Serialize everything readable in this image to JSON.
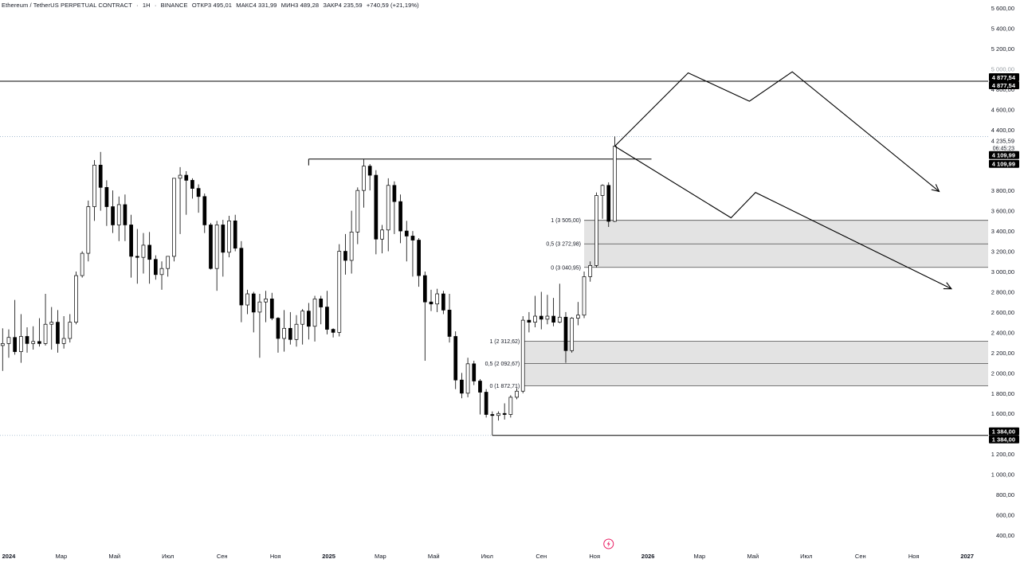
{
  "header": {
    "symbol": "Ethereum / TetherUS PERPETUAL CONTRACT",
    "timeframe": "1Н",
    "exchange": "BINANCE",
    "open": "ОТКР3 495,01",
    "high": "МАКС4 331,99",
    "low": "МИН3 489,28",
    "close": "ЗАКР4 235,59",
    "change": "+740,59 (+21,19%)"
  },
  "chart_data": {
    "type": "candlestick",
    "price_axis_ticks": [
      "5 600,00",
      "5 400,00",
      "5 200,00",
      "5 000,00",
      "4 800,00",
      "4 600,00",
      "4 400,00",
      "4 200,00",
      "4 000,00",
      "3 800,00",
      "3 600,00",
      "3 400,00",
      "3 200,00",
      "3 000,00",
      "2 800,00",
      "2 600,00",
      "2 400,00",
      "2 200,00",
      "2 000,00",
      "1 800,00",
      "1 600,00",
      "1 400,00",
      "1 200,00",
      "1 000,00",
      "800,00",
      "600,00",
      "400,00"
    ],
    "tick_values": [
      5600,
      5400,
      5200,
      5000,
      4800,
      4600,
      4400,
      4200,
      4000,
      3800,
      3600,
      3400,
      3200,
      3000,
      2800,
      2600,
      2400,
      2200,
      2000,
      1800,
      1600,
      1400,
      1200,
      1000,
      800,
      600,
      400
    ],
    "time_axis_ticks": [
      {
        "label": "2024",
        "bold": true,
        "date": "2024-01-01"
      },
      {
        "label": "Мар",
        "bold": false,
        "date": "2024-03-01"
      },
      {
        "label": "Май",
        "bold": false,
        "date": "2024-05-01"
      },
      {
        "label": "Июл",
        "bold": false,
        "date": "2024-07-01"
      },
      {
        "label": "Сен",
        "bold": false,
        "date": "2024-09-01"
      },
      {
        "label": "Ноя",
        "bold": false,
        "date": "2024-11-01"
      },
      {
        "label": "2025",
        "bold": true,
        "date": "2025-01-01"
      },
      {
        "label": "Мар",
        "bold": false,
        "date": "2025-03-01"
      },
      {
        "label": "Май",
        "bold": false,
        "date": "2025-05-01"
      },
      {
        "label": "Июл",
        "bold": false,
        "date": "2025-07-01"
      },
      {
        "label": "Сен",
        "bold": false,
        "date": "2025-09-01"
      },
      {
        "label": "Ноя",
        "bold": false,
        "date": "2025-11-01"
      },
      {
        "label": "2026",
        "bold": true,
        "date": "2026-01-01"
      },
      {
        "label": "Мар",
        "bold": false,
        "date": "2026-03-01"
      },
      {
        "label": "Май",
        "bold": false,
        "date": "2026-05-01"
      },
      {
        "label": "Июл",
        "bold": false,
        "date": "2026-07-01"
      },
      {
        "label": "Сен",
        "bold": false,
        "date": "2026-09-01"
      },
      {
        "label": "Ноя",
        "bold": false,
        "date": "2026-11-01"
      },
      {
        "label": "2027",
        "bold": true,
        "date": "2027-01-01"
      }
    ],
    "candles": [
      {
        "date": "2023-12-25",
        "o": 2270,
        "h": 2440,
        "l": 2020,
        "c": 2290
      },
      {
        "date": "2024-01-01",
        "o": 2290,
        "h": 2430,
        "l": 2150,
        "c": 2350
      },
      {
        "date": "2024-01-08",
        "o": 2350,
        "h": 2720,
        "l": 2180,
        "c": 2210
      },
      {
        "date": "2024-01-15",
        "o": 2210,
        "h": 2580,
        "l": 2100,
        "c": 2360
      },
      {
        "date": "2024-01-22",
        "o": 2360,
        "h": 2450,
        "l": 2200,
        "c": 2290
      },
      {
        "date": "2024-01-29",
        "o": 2290,
        "h": 2460,
        "l": 2230,
        "c": 2310
      },
      {
        "date": "2024-02-05",
        "o": 2310,
        "h": 2540,
        "l": 2260,
        "c": 2290
      },
      {
        "date": "2024-02-12",
        "o": 2290,
        "h": 2780,
        "l": 2270,
        "c": 2480
      },
      {
        "date": "2024-02-19",
        "o": 2480,
        "h": 2650,
        "l": 2230,
        "c": 2500
      },
      {
        "date": "2024-02-26",
        "o": 2500,
        "h": 2620,
        "l": 2200,
        "c": 2290
      },
      {
        "date": "2024-03-04",
        "o": 2290,
        "h": 2560,
        "l": 2240,
        "c": 2340
      },
      {
        "date": "2024-03-11",
        "o": 2340,
        "h": 2580,
        "l": 2300,
        "c": 2500
      },
      {
        "date": "2024-03-18",
        "o": 2500,
        "h": 3000,
        "l": 2480,
        "c": 2960
      },
      {
        "date": "2024-03-25",
        "o": 2960,
        "h": 3200,
        "l": 2940,
        "c": 3180
      },
      {
        "date": "2024-04-01",
        "o": 3180,
        "h": 3700,
        "l": 3100,
        "c": 3640
      },
      {
        "date": "2024-04-08",
        "o": 3640,
        "h": 4100,
        "l": 3500,
        "c": 4050
      },
      {
        "date": "2024-04-15",
        "o": 4050,
        "h": 4180,
        "l": 3600,
        "c": 3830
      },
      {
        "date": "2024-04-22",
        "o": 3830,
        "h": 3900,
        "l": 3450,
        "c": 3640
      },
      {
        "date": "2024-04-29",
        "o": 3640,
        "h": 3800,
        "l": 3380,
        "c": 3460
      },
      {
        "date": "2024-05-06",
        "o": 3460,
        "h": 3740,
        "l": 3300,
        "c": 3660
      },
      {
        "date": "2024-05-13",
        "o": 3660,
        "h": 3760,
        "l": 3300,
        "c": 3460
      },
      {
        "date": "2024-05-20",
        "o": 3460,
        "h": 3560,
        "l": 2940,
        "c": 3150
      },
      {
        "date": "2024-05-27",
        "o": 3150,
        "h": 3420,
        "l": 2880,
        "c": 3140
      },
      {
        "date": "2024-06-03",
        "o": 3140,
        "h": 3380,
        "l": 2980,
        "c": 3260
      },
      {
        "date": "2024-06-10",
        "o": 3260,
        "h": 3390,
        "l": 2880,
        "c": 3120
      },
      {
        "date": "2024-06-17",
        "o": 3120,
        "h": 3160,
        "l": 2920,
        "c": 2970
      },
      {
        "date": "2024-06-24",
        "o": 2970,
        "h": 3100,
        "l": 2820,
        "c": 3030
      },
      {
        "date": "2024-07-01",
        "o": 3030,
        "h": 3150,
        "l": 2950,
        "c": 3150
      },
      {
        "date": "2024-07-08",
        "o": 3150,
        "h": 3900,
        "l": 3100,
        "c": 3920
      },
      {
        "date": "2024-07-15",
        "o": 3920,
        "h": 4030,
        "l": 3370,
        "c": 3950
      },
      {
        "date": "2024-07-22",
        "o": 3950,
        "h": 3990,
        "l": 3560,
        "c": 3900
      },
      {
        "date": "2024-07-29",
        "o": 3900,
        "h": 3920,
        "l": 3720,
        "c": 3820
      },
      {
        "date": "2024-08-05",
        "o": 3820,
        "h": 3860,
        "l": 3580,
        "c": 3740
      },
      {
        "date": "2024-08-12",
        "o": 3740,
        "h": 3770,
        "l": 3380,
        "c": 3460
      },
      {
        "date": "2024-08-19",
        "o": 3460,
        "h": 3480,
        "l": 3020,
        "c": 3030
      },
      {
        "date": "2024-08-26",
        "o": 3030,
        "h": 3500,
        "l": 2810,
        "c": 3460
      },
      {
        "date": "2024-09-02",
        "o": 3460,
        "h": 3510,
        "l": 2950,
        "c": 3190
      },
      {
        "date": "2024-09-09",
        "o": 3190,
        "h": 3550,
        "l": 3140,
        "c": 3500
      },
      {
        "date": "2024-09-16",
        "o": 3500,
        "h": 3560,
        "l": 3200,
        "c": 3230
      },
      {
        "date": "2024-09-23",
        "o": 3230,
        "h": 3300,
        "l": 2500,
        "c": 2670
      },
      {
        "date": "2024-09-30",
        "o": 2670,
        "h": 2820,
        "l": 2580,
        "c": 2780
      },
      {
        "date": "2024-10-07",
        "o": 2780,
        "h": 2800,
        "l": 2400,
        "c": 2600
      },
      {
        "date": "2024-10-14",
        "o": 2600,
        "h": 2780,
        "l": 2150,
        "c": 2700
      },
      {
        "date": "2024-10-21",
        "o": 2700,
        "h": 2810,
        "l": 2500,
        "c": 2730
      },
      {
        "date": "2024-10-28",
        "o": 2730,
        "h": 2790,
        "l": 2520,
        "c": 2540
      },
      {
        "date": "2024-11-04",
        "o": 2540,
        "h": 2550,
        "l": 2200,
        "c": 2340
      },
      {
        "date": "2024-11-11",
        "o": 2340,
        "h": 2620,
        "l": 2210,
        "c": 2440
      },
      {
        "date": "2024-11-18",
        "o": 2440,
        "h": 2600,
        "l": 2280,
        "c": 2330
      },
      {
        "date": "2024-11-25",
        "o": 2330,
        "h": 2570,
        "l": 2260,
        "c": 2480
      },
      {
        "date": "2024-12-02",
        "o": 2480,
        "h": 2630,
        "l": 2280,
        "c": 2610
      },
      {
        "date": "2024-12-09",
        "o": 2610,
        "h": 2690,
        "l": 2330,
        "c": 2460
      },
      {
        "date": "2024-12-16",
        "o": 2460,
        "h": 2760,
        "l": 2310,
        "c": 2730
      },
      {
        "date": "2024-12-23",
        "o": 2730,
        "h": 2760,
        "l": 2480,
        "c": 2650
      },
      {
        "date": "2024-12-30",
        "o": 2650,
        "h": 2810,
        "l": 2380,
        "c": 2430
      },
      {
        "date": "2025-01-06",
        "o": 2430,
        "h": 2440,
        "l": 2350,
        "c": 2400
      },
      {
        "date": "2025-01-13",
        "o": 2400,
        "h": 3270,
        "l": 2360,
        "c": 3200
      },
      {
        "date": "2025-01-20",
        "o": 3200,
        "h": 3370,
        "l": 2970,
        "c": 3110
      },
      {
        "date": "2025-01-27",
        "o": 3110,
        "h": 3600,
        "l": 2980,
        "c": 3390
      },
      {
        "date": "2025-02-03",
        "o": 3390,
        "h": 3830,
        "l": 3270,
        "c": 3800
      },
      {
        "date": "2025-02-10",
        "o": 3800,
        "h": 4110,
        "l": 3630,
        "c": 4040
      },
      {
        "date": "2025-02-17",
        "o": 4040,
        "h": 4060,
        "l": 3800,
        "c": 3950
      },
      {
        "date": "2025-02-24",
        "o": 3950,
        "h": 4000,
        "l": 3170,
        "c": 3320
      },
      {
        "date": "2025-03-03",
        "o": 3320,
        "h": 3460,
        "l": 3180,
        "c": 3410
      },
      {
        "date": "2025-03-10",
        "o": 3410,
        "h": 3920,
        "l": 3200,
        "c": 3850
      },
      {
        "date": "2025-03-17",
        "o": 3850,
        "h": 3890,
        "l": 3370,
        "c": 3690
      },
      {
        "date": "2025-03-24",
        "o": 3690,
        "h": 3760,
        "l": 3280,
        "c": 3400
      },
      {
        "date": "2025-03-31",
        "o": 3400,
        "h": 3500,
        "l": 3100,
        "c": 3350
      },
      {
        "date": "2025-04-07",
        "o": 3350,
        "h": 3400,
        "l": 2950,
        "c": 3310
      },
      {
        "date": "2025-04-14",
        "o": 3310,
        "h": 3330,
        "l": 2850,
        "c": 2960
      },
      {
        "date": "2025-04-21",
        "o": 2960,
        "h": 3000,
        "l": 2120,
        "c": 2700
      },
      {
        "date": "2025-04-28",
        "o": 2700,
        "h": 2820,
        "l": 2610,
        "c": 2680
      },
      {
        "date": "2025-05-05",
        "o": 2680,
        "h": 2830,
        "l": 2600,
        "c": 2780
      },
      {
        "date": "2025-05-12",
        "o": 2780,
        "h": 2810,
        "l": 2580,
        "c": 2620
      },
      {
        "date": "2025-05-19",
        "o": 2620,
        "h": 2780,
        "l": 2300,
        "c": 2360
      },
      {
        "date": "2025-05-26",
        "o": 2360,
        "h": 2410,
        "l": 1840,
        "c": 1930
      },
      {
        "date": "2025-06-02",
        "o": 1930,
        "h": 2000,
        "l": 1750,
        "c": 1800
      },
      {
        "date": "2025-06-09",
        "o": 1800,
        "h": 2150,
        "l": 1760,
        "c": 2090
      },
      {
        "date": "2025-06-16",
        "o": 2090,
        "h": 2120,
        "l": 1880,
        "c": 1920
      },
      {
        "date": "2025-06-23",
        "o": 1920,
        "h": 1940,
        "l": 1590,
        "c": 1810
      },
      {
        "date": "2025-06-30",
        "o": 1810,
        "h": 1840,
        "l": 1560,
        "c": 1590
      },
      {
        "date": "2025-07-07",
        "o": 1590,
        "h": 1620,
        "l": 1384,
        "c": 1580
      },
      {
        "date": "2025-07-14",
        "o": 1580,
        "h": 1620,
        "l": 1530,
        "c": 1600
      },
      {
        "date": "2025-07-21",
        "o": 1600,
        "h": 1700,
        "l": 1540,
        "c": 1590
      },
      {
        "date": "2025-07-28",
        "o": 1590,
        "h": 1780,
        "l": 1560,
        "c": 1760
      },
      {
        "date": "2025-08-04",
        "o": 1760,
        "h": 1850,
        "l": 1740,
        "c": 1820
      },
      {
        "date": "2025-08-11",
        "o": 1820,
        "h": 2560,
        "l": 1800,
        "c": 2520
      },
      {
        "date": "2025-08-18",
        "o": 2520,
        "h": 2600,
        "l": 2400,
        "c": 2500
      },
      {
        "date": "2025-08-25",
        "o": 2500,
        "h": 2760,
        "l": 2450,
        "c": 2560
      },
      {
        "date": "2025-09-01",
        "o": 2560,
        "h": 2800,
        "l": 2430,
        "c": 2530
      },
      {
        "date": "2025-09-08",
        "o": 2530,
        "h": 2770,
        "l": 2480,
        "c": 2560
      },
      {
        "date": "2025-09-15",
        "o": 2560,
        "h": 2740,
        "l": 2460,
        "c": 2500
      },
      {
        "date": "2025-09-22",
        "o": 2500,
        "h": 2880,
        "l": 2490,
        "c": 2550
      },
      {
        "date": "2025-09-29",
        "o": 2550,
        "h": 2600,
        "l": 2100,
        "c": 2220
      },
      {
        "date": "2025-10-06",
        "o": 2220,
        "h": 2550,
        "l": 2200,
        "c": 2540
      },
      {
        "date": "2025-10-13",
        "o": 2540,
        "h": 2700,
        "l": 2470,
        "c": 2570
      },
      {
        "date": "2025-10-20",
        "o": 2570,
        "h": 3000,
        "l": 2540,
        "c": 2950
      },
      {
        "date": "2025-10-27",
        "o": 2950,
        "h": 3100,
        "l": 2900,
        "c": 3060
      },
      {
        "date": "2025-11-03",
        "o": 3060,
        "h": 3780,
        "l": 3040,
        "c": 3750
      },
      {
        "date": "2025-11-10",
        "o": 3750,
        "h": 3860,
        "l": 3520,
        "c": 3850
      },
      {
        "date": "2025-11-17",
        "o": 3850,
        "h": 3880,
        "l": 3440,
        "c": 3495
      },
      {
        "date": "2025-11-24",
        "o": 3495,
        "h": 4332,
        "l": 3489,
        "c": 4236
      }
    ],
    "horizontal_lines": [
      {
        "price": 4877.54,
        "label": "4 877,54",
        "extend": "full"
      },
      {
        "price": 1384.0,
        "label": "1 384,00",
        "extend": "right"
      }
    ],
    "resistance_segment": {
      "price": 4109.99,
      "from": "2024-12-09",
      "to": "2026-01-05"
    },
    "zones": [
      {
        "top": 3505.0,
        "mid": 3272.98,
        "bottom": 3040.95,
        "from": "2025-10-20",
        "labels": [
          "1 (3 505,00)",
          "0,5 (3 272,98)",
          "0 (3 040,95)"
        ]
      },
      {
        "top": 2312.62,
        "mid": 2092.67,
        "bottom": 1872.71,
        "from": "2025-08-11",
        "labels": [
          "1 (2 312,62)",
          "0,5 (2 092,67)",
          "0 (1 872,71)"
        ]
      }
    ],
    "projections": [
      {
        "name": "bullish",
        "points": [
          {
            "date": "2025-11-24",
            "price": 4236
          },
          {
            "date": "2026-02-16",
            "price": 4960
          },
          {
            "date": "2026-04-27",
            "price": 4680
          },
          {
            "date": "2026-06-15",
            "price": 4970
          },
          {
            "date": "2026-11-30",
            "price": 3790
          }
        ]
      },
      {
        "name": "bearish",
        "points": [
          {
            "date": "2025-11-24",
            "price": 4236
          },
          {
            "date": "2026-04-06",
            "price": 3530
          },
          {
            "date": "2026-05-04",
            "price": 3780
          },
          {
            "date": "2026-12-14",
            "price": 2830
          }
        ]
      }
    ],
    "price_labels": {
      "last_price": "4 235,59",
      "countdown": "06:45:23",
      "level_label": "4 109,99",
      "top_line": "4 877,54",
      "bottom_line": "1 384,00",
      "dotted_line_price": 4331.99
    },
    "ylim": [
      400,
      5600
    ],
    "xlim": [
      "2023-12-22",
      "2027-01-25"
    ],
    "grid": false,
    "colors": {
      "up": "#ffffff",
      "down": "#000000",
      "wick": "#000000",
      "zone": "#e3e3e3",
      "zone_border": "#4d4d4d",
      "line": "#000000",
      "dotted": "#9ab3c9",
      "badge_bg": "#000000",
      "badge_fg": "#ffffff",
      "axis_text": "#131722"
    }
  },
  "footer": {
    "lightning_icon": "lightning-icon"
  }
}
